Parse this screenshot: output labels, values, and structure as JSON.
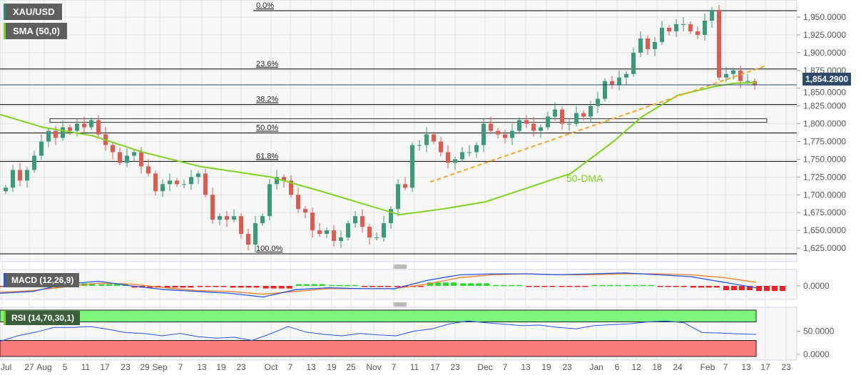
{
  "symbol": "XAU/USD",
  "indicators": {
    "sma": "SMA (50,0)",
    "macd": "MACD (12,26,9)",
    "rsi": "RSI (14,70,30,1)"
  },
  "current_price": "1,854.2900",
  "annotation": "50-DMA",
  "colors": {
    "up": "#3a9a7a",
    "down": "#e05a4f",
    "sma": "#7ed321",
    "trend": "#f5a623",
    "macd": "#2255ee",
    "signal": "#f57c20",
    "rsi": "#2255ee"
  },
  "chart_data": {
    "type": "candlestick",
    "y_ticks": [
      "1,950.0000",
      "1,925.0000",
      "1,900.0000",
      "1,875.0000",
      "1,850.0000",
      "1,825.0000",
      "1,800.0000",
      "1,775.0000",
      "1,750.0000",
      "1,725.0000",
      "1,700.0000",
      "1,675.0000",
      "1,650.0000",
      "1,625.0000"
    ],
    "y_tick_values": [
      1950,
      1925,
      1900,
      1875,
      1850,
      1825,
      1800,
      1775,
      1750,
      1725,
      1700,
      1675,
      1650,
      1625
    ],
    "x_ticks": [
      "Jul",
      "27",
      "Aug",
      "5",
      "11",
      "17",
      "23",
      "29",
      "Sep",
      "7",
      "13",
      "19",
      "23",
      "Oct",
      "7",
      "13",
      "19",
      "25",
      "Nov",
      "7",
      "11",
      "17",
      "23",
      "Dec",
      "7",
      "13",
      "19",
      "23",
      "Jan",
      "6",
      "12",
      "18",
      "24",
      "Feb",
      "7",
      "13",
      "17",
      "23"
    ],
    "closes": [
      1710,
      1735,
      1720,
      1735,
      1755,
      1775,
      1790,
      1780,
      1795,
      1790,
      1800,
      1795,
      1805,
      1785,
      1770,
      1760,
      1745,
      1755,
      1760,
      1740,
      1730,
      1705,
      1715,
      1720,
      1715,
      1715,
      1725,
      1730,
      1700,
      1665,
      1670,
      1665,
      1670,
      1645,
      1630,
      1660,
      1670,
      1715,
      1725,
      1720,
      1700,
      1680,
      1675,
      1650,
      1645,
      1650,
      1635,
      1640,
      1660,
      1670,
      1655,
      1640,
      1640,
      1660,
      1680,
      1715,
      1710,
      1770,
      1770,
      1785,
      1775,
      1760,
      1745,
      1750,
      1760,
      1760,
      1770,
      1800,
      1790,
      1785,
      1780,
      1790,
      1805,
      1800,
      1790,
      1795,
      1810,
      1820,
      1800,
      1800,
      1815,
      1810,
      1825,
      1835,
      1860,
      1855,
      1865,
      1870,
      1900,
      1920,
      1905,
      1915,
      1935,
      1930,
      1940,
      1940,
      1930,
      1925,
      1945,
      1960,
      1865,
      1870,
      1875,
      1860,
      1860,
      1854
    ],
    "sma50": [
      1813,
      1795,
      1783,
      1760,
      1740,
      1725,
      1705,
      1690,
      1672,
      1680,
      1690,
      1710,
      1730,
      1775,
      1810,
      1840,
      1852,
      1857,
      1858
    ],
    "fib_levels": [
      {
        "label": "0.0%",
        "value": 1959
      },
      {
        "label": "23.6%",
        "value": 1877
      },
      {
        "label": "38.2%",
        "value": 1827
      },
      {
        "label": "50.0%",
        "value": 1787
      },
      {
        "label": "61.8%",
        "value": 1747
      },
      {
        "label": "100.0%",
        "value": 1617
      }
    ],
    "resistance_zone": [
      1802,
      1807
    ],
    "trendline": [
      1718,
      1882
    ],
    "macd": {
      "zero_label": "0.0000",
      "macd": [
        -8,
        -6,
        2,
        5,
        0,
        -4,
        -6,
        -8,
        -12,
        -4,
        -2,
        -3,
        -3,
        6,
        12,
        13,
        13,
        12,
        13,
        14,
        12,
        10,
        4,
        -2
      ],
      "signal": [
        -7,
        -5,
        -1,
        3,
        2,
        -2,
        -5,
        -6,
        -9,
        -6,
        -3,
        -3,
        -3,
        2,
        9,
        12,
        13,
        12,
        12,
        13,
        13,
        12,
        9,
        4
      ]
    },
    "rsi": {
      "labels": [
        "50.0000",
        "0.0000"
      ],
      "overbought": 70,
      "oversold": 30,
      "values": [
        28,
        40,
        48,
        58,
        58,
        60,
        54,
        47,
        45,
        40,
        45,
        38,
        35,
        37,
        30,
        44,
        60,
        48,
        43,
        40,
        45,
        42,
        40,
        50,
        55,
        66,
        72,
        68,
        65,
        62,
        63,
        58,
        55,
        62,
        64,
        66,
        70,
        72,
        68,
        47,
        46,
        44,
        43
      ]
    }
  }
}
